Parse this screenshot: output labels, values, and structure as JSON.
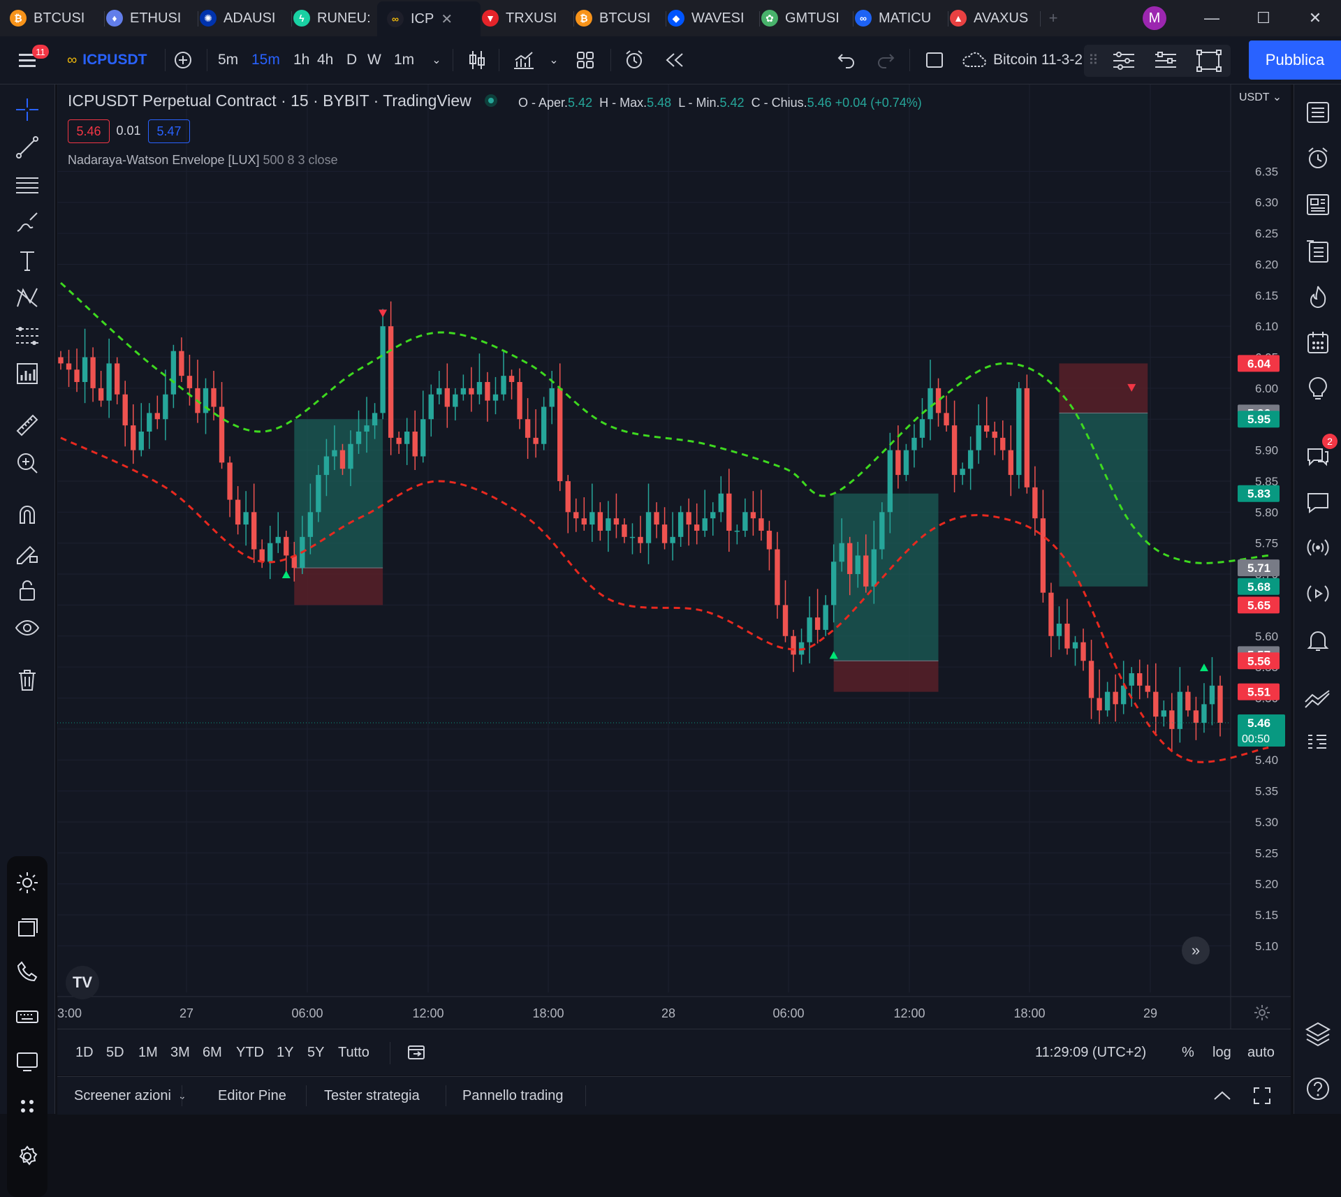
{
  "tabs": [
    {
      "label": "BTCUSDT",
      "coin": "btc",
      "color": "#f7931a",
      "glyph": "₿"
    },
    {
      "label": "ETHUSDT",
      "coin": "eth",
      "color": "#627eea",
      "glyph": "♦"
    },
    {
      "label": "ADAUSDT",
      "coin": "ada",
      "color": "#0033ad",
      "glyph": "✺"
    },
    {
      "label": "RUNEUSDT",
      "coin": "rune",
      "color": "#19d1a3",
      "glyph": "ϟ"
    },
    {
      "label": "ICPUSDT",
      "coin": "icp",
      "color": "#1e1f2a",
      "glyph": "∞",
      "active": true
    },
    {
      "label": "TRXUSDT",
      "coin": "trx",
      "color": "#e5242a",
      "glyph": "▼"
    },
    {
      "label": "BTCUSDT",
      "coin": "btc",
      "color": "#f7931a",
      "glyph": "₿"
    },
    {
      "label": "WAVESUSDT",
      "coin": "waves",
      "color": "#0055ff",
      "glyph": "◆"
    },
    {
      "label": "GMTUSDT",
      "coin": "gmt",
      "color": "#48b26b",
      "glyph": "✿"
    },
    {
      "label": "MATICUSDT",
      "coin": "matic",
      "color": "#1e63f5",
      "glyph": "∞"
    },
    {
      "label": "AVAXUSDT",
      "coin": "avax",
      "color": "#e84142",
      "glyph": "▲"
    }
  ],
  "tab_display": [
    "BTCUSI",
    "ETHUSI",
    "ADAUSI",
    "RUNEU:",
    "ICP",
    "TRXUSI",
    "BTCUSI",
    "WAVESI",
    "GMTUSI",
    "MATICU",
    "AVAXUS"
  ],
  "profile_initial": "M",
  "toolbar": {
    "notification_count": "11",
    "symbol": "ICPUSDT",
    "intervals": [
      "5m",
      "15m",
      "1h",
      "4h",
      "D",
      "W",
      "1m"
    ],
    "active_interval": "15m",
    "layout_name": "Bitcoin 11-3-2",
    "publish_label": "Pubblica"
  },
  "legend": {
    "title": "ICPUSDT Perpetual Contract · 15 · BYBIT · TradingView",
    "open_label": "O - Aper.",
    "open": "5.42",
    "high_label": "H - Max.",
    "high": "5.48",
    "low_label": "L - Min.",
    "low": "5.42",
    "close_label": "C - Chius.",
    "close": "5.46",
    "change": "+0.04 (+0.74%)",
    "bid": "5.46",
    "spread": "0.01",
    "ask": "5.47",
    "indicator_name": "Nadaraya-Watson Envelope [LUX]",
    "indicator_params": "500 8 3 close"
  },
  "currency": "USDT",
  "colors": {
    "up": "#26a69a",
    "down": "#ef5350",
    "upper_env": "#3ed91f",
    "lower_env": "#e8291f",
    "accent": "#2962ff",
    "position_profit": "#1b5e57",
    "position_loss": "#5c2129"
  },
  "chart_data": {
    "type": "candlestick",
    "y_axis_ticks": [
      "6.35",
      "6.30",
      "6.25",
      "6.20",
      "6.15",
      "6.10",
      "6.05",
      "6.00",
      "5.95",
      "5.90",
      "5.85",
      "5.80",
      "5.75",
      "5.70",
      "5.65",
      "5.60",
      "5.55",
      "5.50",
      "5.45",
      "5.40",
      "5.35",
      "5.30",
      "5.25",
      "5.20",
      "5.15",
      "5.10"
    ],
    "ylim": [
      5.07,
      6.4
    ],
    "x_axis_ticks": [
      "3:00",
      "27",
      "06:00",
      "12:00",
      "18:00",
      "28",
      "06:00",
      "12:00",
      "18:00",
      "29"
    ],
    "price_labels": [
      {
        "value": "6.04",
        "color": "#f23645"
      },
      {
        "value": "5.96",
        "color": "#787b86"
      },
      {
        "value": "5.95",
        "color": "#089981"
      },
      {
        "value": "5.83",
        "color": "#089981"
      },
      {
        "value": "5.71",
        "color": "#787b86"
      },
      {
        "value": "5.68",
        "color": "#089981"
      },
      {
        "value": "5.65",
        "color": "#f23645"
      },
      {
        "value": "5.57",
        "color": "#787b86"
      },
      {
        "value": "5.56",
        "color": "#f23645"
      },
      {
        "value": "5.51",
        "color": "#f23645"
      },
      {
        "value": "5.46",
        "color": "#089981",
        "countdown": "00:50"
      }
    ],
    "last_price": 5.46,
    "candle_closes": [
      6.04,
      6.03,
      6.01,
      6.05,
      6.0,
      5.98,
      6.04,
      5.99,
      5.94,
      5.9,
      5.93,
      5.96,
      5.95,
      5.99,
      6.06,
      6.02,
      6.0,
      5.96,
      6.0,
      5.97,
      5.88,
      5.82,
      5.78,
      5.8,
      5.74,
      5.72,
      5.75,
      5.76,
      5.73,
      5.71,
      5.76,
      5.8,
      5.86,
      5.89,
      5.9,
      5.87,
      5.91,
      5.93,
      5.94,
      5.96,
      6.1,
      5.92,
      5.91,
      5.93,
      5.89,
      5.95,
      5.99,
      6.0,
      5.97,
      5.99,
      6.0,
      5.99,
      6.01,
      5.98,
      5.99,
      6.02,
      6.01,
      5.95,
      5.92,
      5.91,
      5.97,
      6.0,
      5.85,
      5.8,
      5.79,
      5.78,
      5.8,
      5.77,
      5.79,
      5.78,
      5.76,
      5.76,
      5.75,
      5.8,
      5.78,
      5.75,
      5.76,
      5.8,
      5.78,
      5.77,
      5.79,
      5.8,
      5.83,
      5.77,
      5.77,
      5.8,
      5.79,
      5.77,
      5.74,
      5.65,
      5.6,
      5.57,
      5.59,
      5.63,
      5.61,
      5.65,
      5.72,
      5.75,
      5.7,
      5.73,
      5.68,
      5.74,
      5.8,
      5.9,
      5.86,
      5.9,
      5.92,
      5.95,
      6.0,
      5.96,
      5.94,
      5.86,
      5.87,
      5.9,
      5.94,
      5.93,
      5.92,
      5.9,
      5.86,
      6.0,
      5.84,
      5.79,
      5.67,
      5.6,
      5.62,
      5.58,
      5.59,
      5.56,
      5.5,
      5.48,
      5.51,
      5.49,
      5.52,
      5.54,
      5.52,
      5.51,
      5.47,
      5.48,
      5.45,
      5.51,
      5.48,
      5.46,
      5.49,
      5.52,
      5.46
    ],
    "upper_envelope_anchors": [
      [
        0,
        6.17
      ],
      [
        13,
        6.02
      ],
      [
        25,
        5.93
      ],
      [
        37,
        6.03
      ],
      [
        47,
        6.09
      ],
      [
        58,
        6.04
      ],
      [
        68,
        5.94
      ],
      [
        80,
        5.91
      ],
      [
        90,
        5.87
      ],
      [
        96,
        5.83
      ],
      [
        108,
        5.97
      ],
      [
        117,
        6.04
      ],
      [
        125,
        5.98
      ],
      [
        133,
        5.78
      ],
      [
        140,
        5.72
      ],
      [
        150,
        5.73
      ]
    ],
    "lower_envelope_anchors": [
      [
        0,
        5.92
      ],
      [
        13,
        5.84
      ],
      [
        25,
        5.72
      ],
      [
        37,
        5.79
      ],
      [
        47,
        5.85
      ],
      [
        58,
        5.79
      ],
      [
        68,
        5.66
      ],
      [
        80,
        5.64
      ],
      [
        90,
        5.58
      ],
      [
        96,
        5.61
      ],
      [
        108,
        5.77
      ],
      [
        117,
        5.79
      ],
      [
        125,
        5.72
      ],
      [
        133,
        5.5
      ],
      [
        140,
        5.4
      ],
      [
        150,
        5.42
      ]
    ],
    "signals": [
      {
        "type": "sell",
        "index": 40,
        "price": 6.12
      },
      {
        "type": "buy",
        "index": 28,
        "price": 5.7
      },
      {
        "type": "buy",
        "index": 96,
        "price": 5.57
      },
      {
        "type": "sell",
        "index": 133,
        "price": 6.0
      },
      {
        "type": "buy",
        "index": 142,
        "price": 5.55
      }
    ],
    "positions": [
      {
        "side": "long",
        "from": 29,
        "to": 40,
        "entry": 5.71,
        "target": 5.95,
        "stop": 5.65
      },
      {
        "side": "long",
        "from": 96,
        "to": 109,
        "entry": 5.56,
        "target": 5.83,
        "stop": 5.51
      },
      {
        "side": "short",
        "from": 124,
        "to": 135,
        "entry": 5.96,
        "target": 5.68,
        "stop": 6.04
      }
    ]
  },
  "axis_footer": {
    "time": "11:29:09 (UTC+2)",
    "percent": "%",
    "log": "log",
    "auto": "auto"
  },
  "periods": [
    "1D",
    "5D",
    "1M",
    "3M",
    "6M",
    "YTD",
    "1Y",
    "5Y",
    "Tutto"
  ],
  "bottom_tabs": [
    "Screener azioni",
    "Editor Pine",
    "Tester strategia",
    "Pannello trading"
  ],
  "right_badge": "2"
}
